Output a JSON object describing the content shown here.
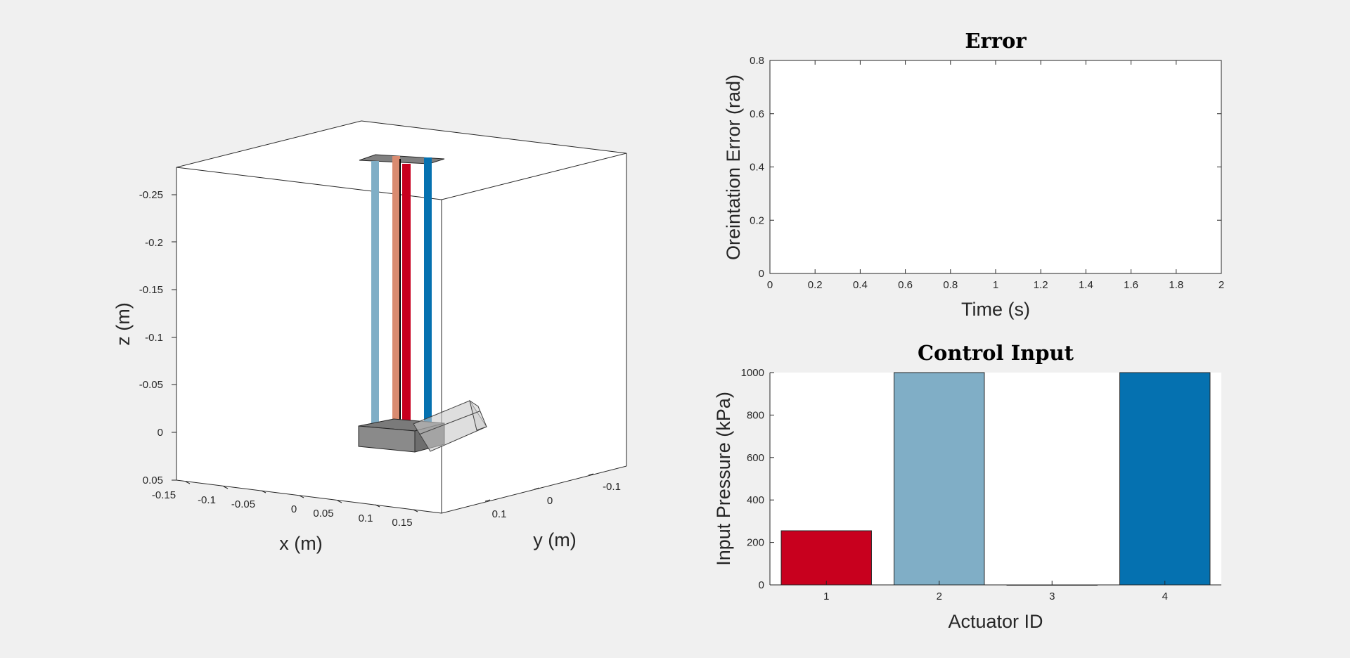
{
  "figure": {
    "background": "#f0f0f0"
  },
  "chart_data": [
    {
      "type": "3d-scene",
      "xlabel": "x (m)",
      "ylabel": "y (m)",
      "zlabel": "z (m)",
      "x_ticks": [
        "-0.15",
        "-0.1",
        "-0.05",
        "0",
        "0.05",
        "0.1",
        "0.15"
      ],
      "y_ticks": [
        "-0.1",
        "0",
        "0.1"
      ],
      "z_ticks": [
        "-0.25",
        "-0.2",
        "-0.15",
        "-0.1",
        "-0.05",
        "0",
        "0.05"
      ],
      "zlim": [
        -0.28,
        0.05
      ],
      "z_reversed": true,
      "actuator_colors": [
        "#c8001e",
        "#80aec6",
        "#d98b70",
        "#0571b0"
      ],
      "platform_color": "#808080"
    },
    {
      "type": "line",
      "title": "Error",
      "xlabel": "Time (s)",
      "ylabel": "Oreintation Error (rad)",
      "xlim": [
        0,
        2
      ],
      "ylim": [
        0,
        0.8
      ],
      "x_ticks": [
        "0",
        "0.2",
        "0.4",
        "0.6",
        "0.8",
        "1",
        "1.2",
        "1.4",
        "1.6",
        "1.8",
        "2"
      ],
      "y_ticks": [
        "0",
        "0.2",
        "0.4",
        "0.6",
        "0.8"
      ],
      "series": []
    },
    {
      "type": "bar",
      "title": "Control Input",
      "xlabel": "Actuator ID",
      "ylabel": "Input Pressure (kPa)",
      "categories": [
        "1",
        "2",
        "3",
        "4"
      ],
      "values": [
        255,
        1000,
        0,
        1000
      ],
      "colors": [
        "#c8001e",
        "#80aec6",
        "#d98b70",
        "#0571b0"
      ],
      "ylim": [
        0,
        1000
      ],
      "y_ticks": [
        "0",
        "200",
        "400",
        "600",
        "800",
        "1000"
      ]
    }
  ]
}
